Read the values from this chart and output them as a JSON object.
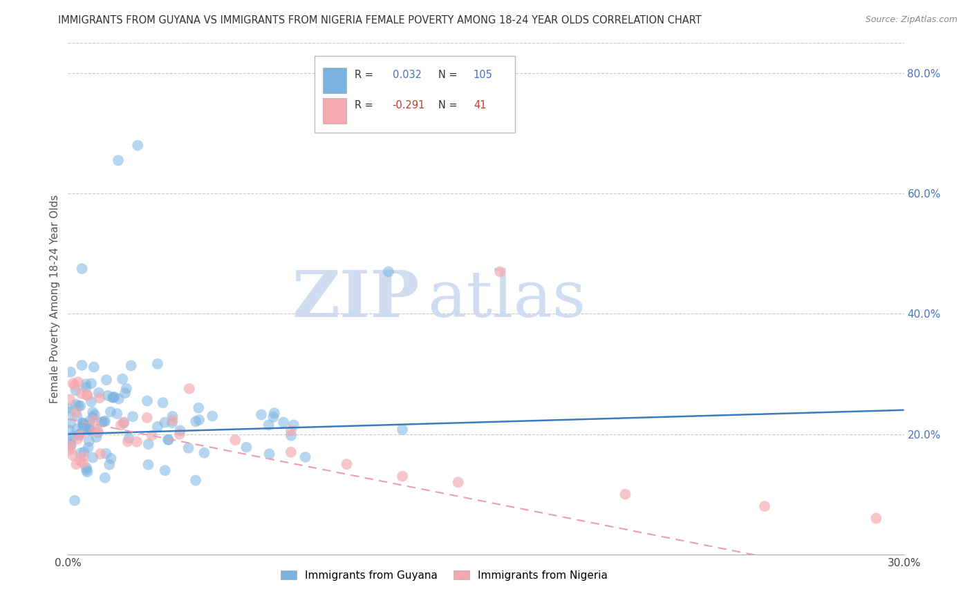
{
  "title": "IMMIGRANTS FROM GUYANA VS IMMIGRANTS FROM NIGERIA FEMALE POVERTY AMONG 18-24 YEAR OLDS CORRELATION CHART",
  "source": "Source: ZipAtlas.com",
  "ylabel": "Female Poverty Among 18-24 Year Olds",
  "xlim": [
    0.0,
    0.3
  ],
  "ylim": [
    0.0,
    0.85
  ],
  "ytick_positions": [
    0.2,
    0.4,
    0.6,
    0.8
  ],
  "ytick_labels": [
    "20.0%",
    "40.0%",
    "60.0%",
    "80.0%"
  ],
  "background_color": "#ffffff",
  "grid_color": "#c8c8c8",
  "watermark_zip": "ZIP",
  "watermark_atlas": "atlas",
  "guyana_color": "#7ab3e0",
  "nigeria_color": "#f4a8b0",
  "guyana_line_color": "#3a7abf",
  "nigeria_line_color": "#e8a0b0",
  "guyana_R": 0.032,
  "guyana_N": 105,
  "nigeria_R": -0.291,
  "nigeria_N": 41,
  "legend_label_guyana": "Immigrants from Guyana",
  "legend_label_nigeria": "Immigrants from Nigeria",
  "r_color": "#4472c4",
  "n_color": "#4472c4",
  "r_neg_color": "#c0392b",
  "n_neg_color": "#c0392b"
}
